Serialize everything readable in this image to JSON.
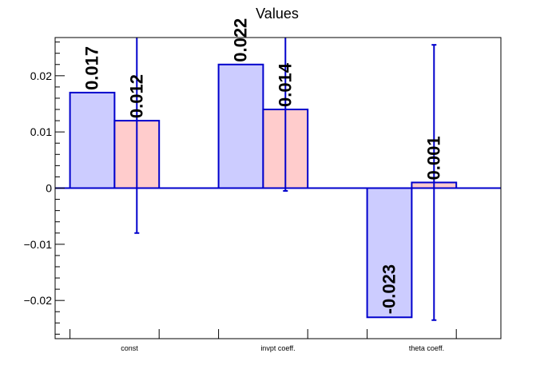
{
  "chart_data": {
    "type": "bar",
    "title": "Values",
    "xlabel": "",
    "ylabel": "",
    "categories": [
      "const",
      "invpt coeff.",
      "theta coeff."
    ],
    "ylim": [
      -0.0268,
      0.0268
    ],
    "yticks": [
      -0.02,
      -0.01,
      0,
      0.01,
      0.02
    ],
    "ytick_labels": [
      "−0.02",
      "−0.01",
      "0",
      "0.01",
      "0.02"
    ],
    "grid": false,
    "series": [
      {
        "values": [
          0.017,
          0.022,
          -0.023
        ],
        "value_labels": [
          "0.017",
          "0.022",
          "-0.023"
        ],
        "fill": "#ccccff",
        "stroke": "#0000cc"
      },
      {
        "values": [
          0.012,
          0.014,
          0.001
        ],
        "value_labels": [
          "0.012",
          "0.014",
          "0.001"
        ],
        "fill": "#ffcccc",
        "stroke": "#0000cc",
        "errors": [
          0.02,
          0.0145,
          0.0245
        ]
      }
    ],
    "colors": {
      "axis": "#000000",
      "baseline": "#0000cc",
      "error_bar": "#0000cc"
    }
  }
}
